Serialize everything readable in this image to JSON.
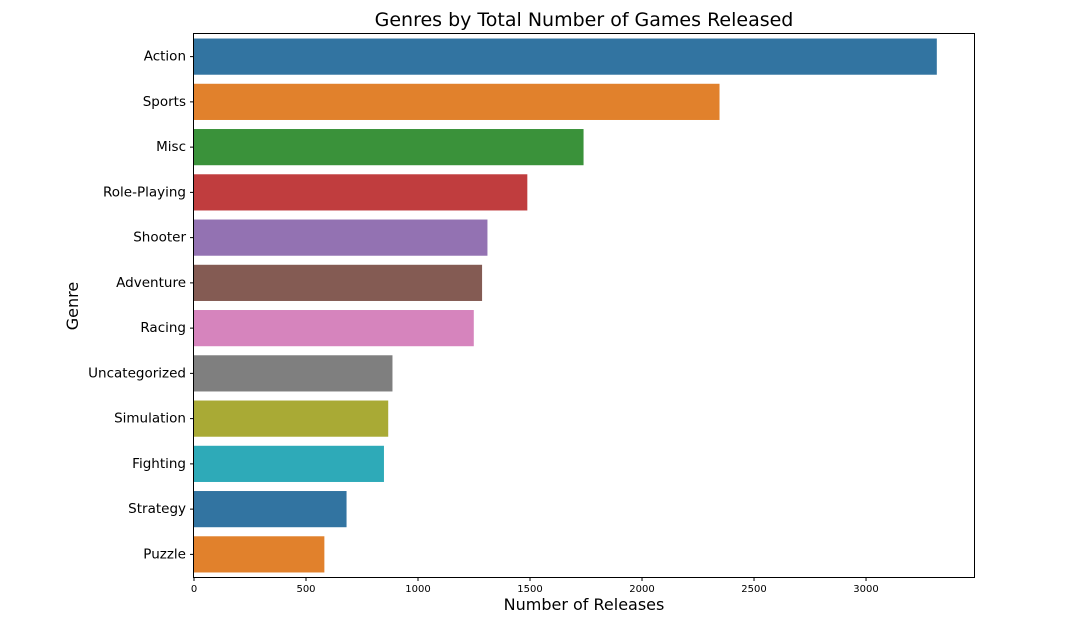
{
  "chart_data": {
    "type": "bar",
    "orientation": "horizontal",
    "title": "Genres by Total Number of Games Released",
    "xlabel": "Number of Releases",
    "ylabel": "Genre",
    "categories": [
      "Action",
      "Sports",
      "Misc",
      "Role-Playing",
      "Shooter",
      "Adventure",
      "Racing",
      "Uncategorized",
      "Simulation",
      "Fighting",
      "Strategy",
      "Puzzle"
    ],
    "values": [
      3316,
      2346,
      1739,
      1488,
      1310,
      1286,
      1249,
      886,
      867,
      848,
      681,
      582
    ],
    "colors": [
      "#3274a1",
      "#e1812c",
      "#3a923a",
      "#c03d3e",
      "#9372b2",
      "#845b53",
      "#d684bd",
      "#7f7f7f",
      "#a9aa35",
      "#2eaab8",
      "#3274a1",
      "#e1812c"
    ],
    "xticks": [
      "0",
      "500",
      "1000",
      "1500",
      "2000",
      "2500",
      "3000"
    ],
    "xlim": [
      0,
      3482
    ],
    "grid": false,
    "legend": false
  }
}
